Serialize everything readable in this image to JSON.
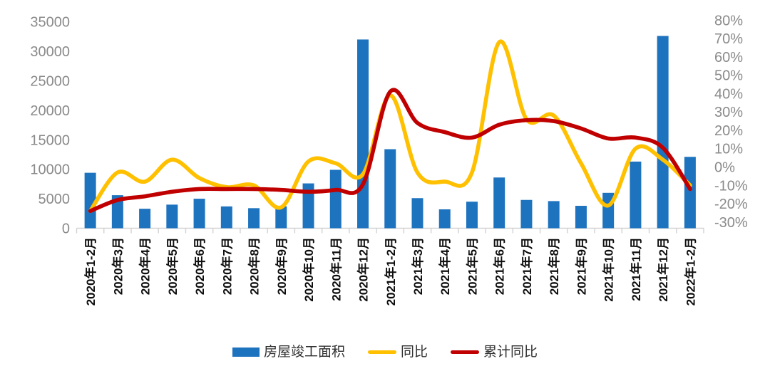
{
  "chart_data": {
    "type": "bar",
    "subtype": "combo-bar-line",
    "title": "",
    "xlabel": "",
    "ylabel": "",
    "grid": false,
    "legend_position": "bottom",
    "categories": [
      "2020年1-2月",
      "2020年3月",
      "2020年4月",
      "2020年5月",
      "2020年6月",
      "2020年7月",
      "2020年8月",
      "2020年9月",
      "2020年10月",
      "2020年11月",
      "2020年12月",
      "2021年1-2月",
      "2021年3月",
      "2021年4月",
      "2021年5月",
      "2021年6月",
      "2021年7月",
      "2021年8月",
      "2021年9月",
      "2021年10月",
      "2021年11月",
      "2021年12月",
      "2022年1-2月"
    ],
    "series": [
      {
        "name": "房屋竣工面积",
        "type": "bar",
        "axis": "left",
        "color": "#1E73BE",
        "values": [
          9400,
          5600,
          3300,
          4000,
          5000,
          3700,
          3400,
          3700,
          7600,
          9900,
          32000,
          13400,
          5100,
          3200,
          4500,
          8600,
          4800,
          4600,
          3800,
          6000,
          11300,
          32600,
          12100
        ]
      },
      {
        "name": "同比",
        "type": "line",
        "axis": "right",
        "color": "#FFC000",
        "values": [
          -24,
          -3,
          -8,
          4,
          -6,
          -11,
          -10,
          -22,
          3,
          2,
          -4,
          39,
          -3,
          -8,
          -3,
          68,
          26,
          28,
          2,
          -21,
          10,
          4,
          -10
        ]
      },
      {
        "name": "累计同比",
        "type": "line",
        "axis": "right",
        "color": "#C00000",
        "values": [
          -24,
          -18,
          -16,
          -13.5,
          -12,
          -12,
          -12,
          -12.5,
          -13.5,
          -12.5,
          -9.5,
          41,
          24,
          19,
          16,
          23,
          25.5,
          25,
          21,
          15.5,
          16,
          10.5,
          -12
        ]
      }
    ],
    "left_axis": {
      "min": 0,
      "max": 35000,
      "tick_values": [
        0,
        5000,
        10000,
        15000,
        20000,
        25000,
        30000,
        35000
      ],
      "tick_labels": [
        "0",
        "5000",
        "10000",
        "15000",
        "20000",
        "25000",
        "30000",
        "35000"
      ]
    },
    "right_axis": {
      "min": -30,
      "max": 80,
      "tick_values": [
        80,
        70,
        60,
        50,
        40,
        30,
        20,
        10,
        0,
        -10,
        -20,
        -30
      ],
      "tick_labels": [
        "80%",
        "70%",
        "60%",
        "50%",
        "40%",
        "30%",
        "20%",
        "10%",
        "0%",
        "-10%",
        "-20%",
        "-30%"
      ]
    }
  },
  "legend": {
    "bar_label": "房屋竣工面积",
    "yoy_label": "同比",
    "cumulative_label": "累计同比"
  },
  "colors": {
    "bar": "#1E73BE",
    "yoy_line": "#FFC000",
    "cumulative_line": "#C00000",
    "axis_line": "#d2d2d2",
    "y_tick_text": "#8a8a8a",
    "x_tick_text": "#0d0d0d",
    "background": "#ffffff"
  }
}
